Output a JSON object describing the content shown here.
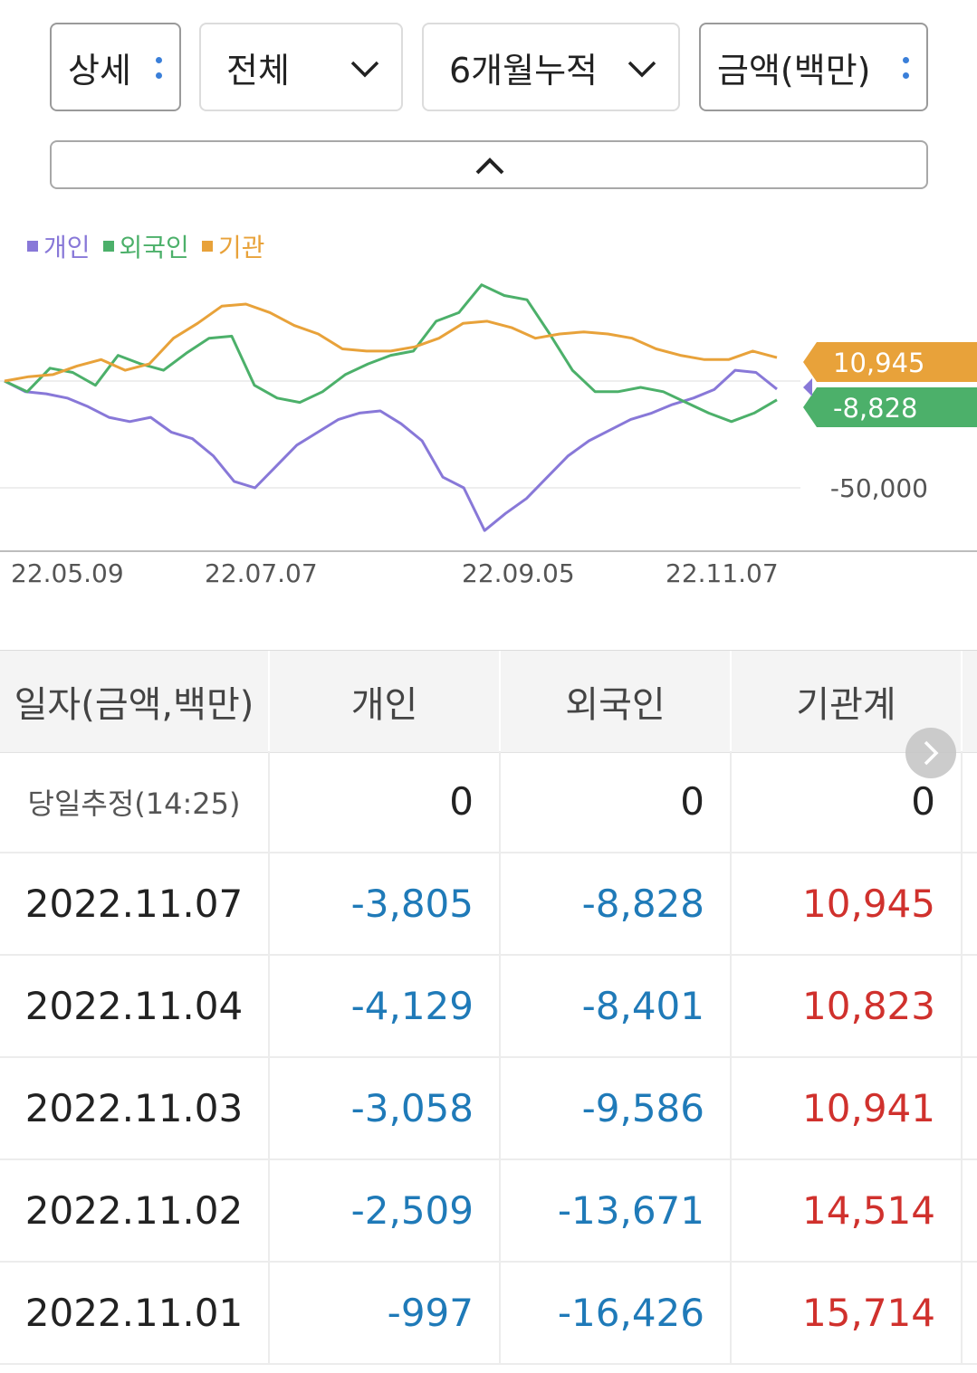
{
  "controls": {
    "detail": "상세",
    "scope": "전체",
    "period": "6개월누적",
    "unit": "금액(백만)"
  },
  "legend": [
    {
      "label": "개인",
      "color": "#8878d8"
    },
    {
      "label": "외국인",
      "color": "#4cb06a"
    },
    {
      "label": "기관",
      "color": "#e8a23a"
    }
  ],
  "chart_data": {
    "type": "line",
    "x_ticks": [
      "22.05.09",
      "22.07.07",
      "22.09.05",
      "22.11.07"
    ],
    "y_tick_labels": [
      "-50,000"
    ],
    "y_ticks": [
      -50000
    ],
    "ylim": [
      -75000,
      47000
    ],
    "series": [
      {
        "name": "개인",
        "color": "#8878d8",
        "values": [
          0,
          -5000,
          -6000,
          -8000,
          -12000,
          -17000,
          -19000,
          -17000,
          -24000,
          -27000,
          -35000,
          -47000,
          -50000,
          -40000,
          -30000,
          -24000,
          -18000,
          -15000,
          -14000,
          -20000,
          -28000,
          -45000,
          -50000,
          -70000,
          -62000,
          -55000,
          -45000,
          -35000,
          -28000,
          -23000,
          -18000,
          -15000,
          -11000,
          -8000,
          -4000,
          5000,
          4000,
          -3805
        ]
      },
      {
        "name": "외국인",
        "color": "#4cb06a",
        "values": [
          0,
          -5000,
          6000,
          4000,
          -2000,
          12000,
          8000,
          5000,
          13000,
          20000,
          21000,
          -2000,
          -8000,
          -10000,
          -5000,
          3000,
          8000,
          12000,
          14000,
          28000,
          32000,
          45000,
          40000,
          38000,
          22000,
          5000,
          -5000,
          -5000,
          -3000,
          -5000,
          -10000,
          -15000,
          -19000,
          -15000,
          -8828
        ]
      },
      {
        "name": "기관",
        "color": "#e8a23a",
        "values": [
          0,
          2000,
          3000,
          7000,
          10000,
          5000,
          8000,
          20000,
          27000,
          35000,
          36000,
          32000,
          26000,
          22000,
          15000,
          14000,
          14000,
          16000,
          20000,
          27000,
          28000,
          25000,
          20000,
          22000,
          23000,
          22000,
          20000,
          15000,
          12000,
          10000,
          10000,
          14000,
          10945
        ]
      }
    ],
    "end_labels": [
      {
        "text": "10,945",
        "color": "#e8a23a"
      },
      {
        "text": "-8,828",
        "color": "#4cb06a"
      }
    ]
  },
  "table": {
    "headers": [
      "일자(금액,백만)",
      "개인",
      "외국인",
      "기관계"
    ],
    "rows": [
      {
        "date": "당일추정(14:25)",
        "individual": "0",
        "foreign": "0",
        "institution": "0"
      },
      {
        "date": "2022.11.07",
        "individual": "-3,805",
        "foreign": "-8,828",
        "institution": "10,945"
      },
      {
        "date": "2022.11.04",
        "individual": "-4,129",
        "foreign": "-8,401",
        "institution": "10,823"
      },
      {
        "date": "2022.11.03",
        "individual": "-3,058",
        "foreign": "-9,586",
        "institution": "10,941"
      },
      {
        "date": "2022.11.02",
        "individual": "-2,509",
        "foreign": "-13,671",
        "institution": "14,514"
      },
      {
        "date": "2022.11.01",
        "individual": "-997",
        "foreign": "-16,426",
        "institution": "15,714"
      }
    ]
  }
}
